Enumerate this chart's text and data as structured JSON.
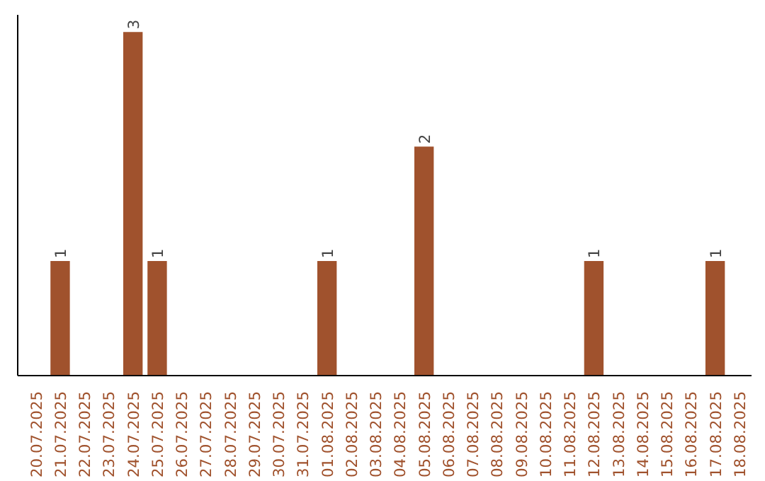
{
  "chart_data": {
    "type": "bar",
    "categories": [
      "20.07.2025",
      "21.07.2025",
      "22.07.2025",
      "23.07.2025",
      "24.07.2025",
      "25.07.2025",
      "26.07.2025",
      "27.07.2025",
      "28.07.2025",
      "29.07.2025",
      "30.07.2025",
      "31.07.2025",
      "01.08.2025",
      "02.08.2025",
      "03.08.2025",
      "04.08.2025",
      "05.08.2025",
      "06.08.2025",
      "07.08.2025",
      "08.08.2025",
      "09.08.2025",
      "10.08.2025",
      "11.08.2025",
      "12.08.2025",
      "13.08.2025",
      "14.08.2025",
      "15.08.2025",
      "16.08.2025",
      "17.08.2025",
      "18.08.2025"
    ],
    "values": [
      0,
      1,
      0,
      0,
      3,
      1,
      0,
      0,
      0,
      0,
      0,
      0,
      1,
      0,
      0,
      0,
      2,
      0,
      0,
      0,
      0,
      0,
      0,
      1,
      0,
      0,
      0,
      0,
      1,
      0
    ],
    "value_labels": [
      null,
      "1",
      null,
      null,
      "3",
      "1",
      null,
      null,
      null,
      null,
      null,
      null,
      "1",
      null,
      null,
      null,
      "2",
      null,
      null,
      null,
      null,
      null,
      null,
      "1",
      null,
      null,
      null,
      null,
      "1",
      null
    ],
    "color": "#a0522d",
    "ylim": [
      0,
      3.15
    ],
    "grid": false
  }
}
